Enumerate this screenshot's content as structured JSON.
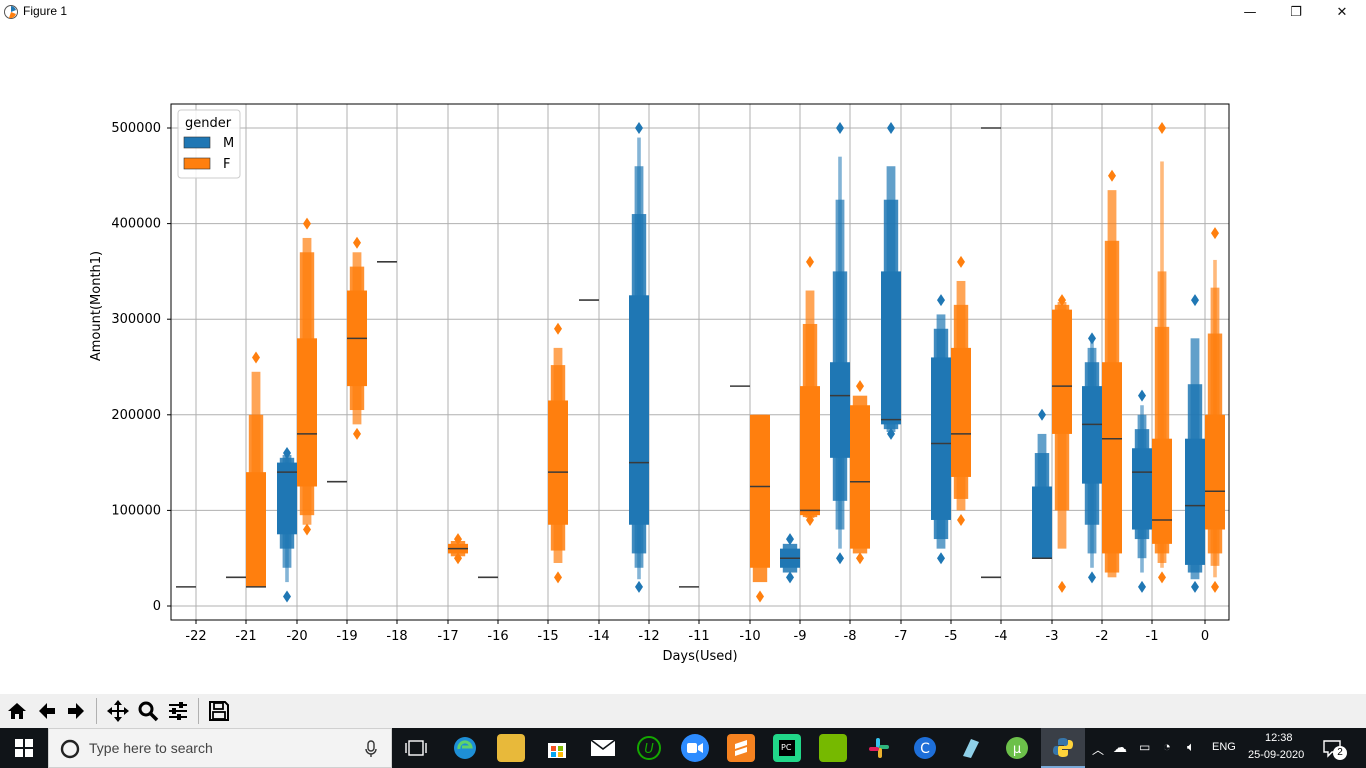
{
  "window": {
    "title": "Figure 1",
    "minimize": "—",
    "restore": "❐",
    "close": "✕"
  },
  "chart_data": {
    "type": "boxen",
    "xlabel": "Days(Used)",
    "ylabel": "Amount(Month1)",
    "ylim": [
      -14000,
      524000
    ],
    "yticks": [
      0,
      100000,
      200000,
      300000,
      400000,
      500000
    ],
    "ytick_labels": [
      "0",
      "100000",
      "200000",
      "300000",
      "400000",
      "500000"
    ],
    "categories": [
      "-22",
      "-21",
      "-20",
      "-19",
      "-18",
      "-17",
      "-16",
      "-15",
      "-14",
      "-12",
      "-11",
      "-10",
      "-9",
      "-8",
      "-7",
      "-5",
      "-4",
      "-3",
      "-2",
      "-1",
      "0"
    ],
    "grid": true,
    "legend": {
      "title": "gender",
      "placement": "top-left",
      "entries": [
        "M",
        "F"
      ]
    },
    "colors": {
      "M": "#1f77b4",
      "F": "#ff7f0e"
    },
    "series": [
      {
        "name": "M",
        "boxes": [
          {
            "cat": "-22",
            "median": 20000,
            "levels": [],
            "outliers": []
          },
          {
            "cat": "-21",
            "median": 30000,
            "levels": [],
            "outliers": []
          },
          {
            "cat": "-20",
            "median": 140000,
            "levels": [
              [
                75000,
                150000
              ],
              [
                60000,
                155000
              ],
              [
                40000,
                158000
              ],
              [
                25000,
                160000
              ]
            ],
            "outliers": [
              10000,
              160000
            ]
          },
          {
            "cat": "-19",
            "median": 130000,
            "levels": [],
            "outliers": []
          },
          {
            "cat": "-18",
            "median": 360000,
            "levels": [],
            "outliers": []
          },
          {
            "cat": "-16",
            "median": 30000,
            "levels": [],
            "outliers": []
          },
          {
            "cat": "-14",
            "median": 320000,
            "levels": [],
            "outliers": []
          },
          {
            "cat": "-12",
            "median": 150000,
            "levels": [
              [
                85000,
                325000
              ],
              [
                55000,
                410000
              ],
              [
                40000,
                460000
              ],
              [
                28000,
                490000
              ]
            ],
            "outliers": [
              20000,
              500000
            ]
          },
          {
            "cat": "-11",
            "median": 20000,
            "levels": [],
            "outliers": []
          },
          {
            "cat": "-10",
            "median": 230000,
            "levels": [],
            "outliers": []
          },
          {
            "cat": "-9",
            "median": 50000,
            "levels": [
              [
                40000,
                60000
              ],
              [
                35000,
                65000
              ]
            ],
            "outliers": [
              30000,
              70000
            ]
          },
          {
            "cat": "-8",
            "median": 220000,
            "levels": [
              [
                155000,
                255000
              ],
              [
                110000,
                350000
              ],
              [
                80000,
                425000
              ],
              [
                60000,
                470000
              ]
            ],
            "outliers": [
              50000,
              500000
            ]
          },
          {
            "cat": "-7",
            "median": 195000,
            "levels": [
              [
                190000,
                350000
              ],
              [
                185000,
                425000
              ],
              [
                182000,
                460000
              ]
            ],
            "outliers": [
              180000,
              500000
            ]
          },
          {
            "cat": "-5",
            "median": 170000,
            "levels": [
              [
                90000,
                260000
              ],
              [
                70000,
                290000
              ],
              [
                60000,
                305000
              ]
            ],
            "outliers": [
              50000,
              320000
            ]
          },
          {
            "cat": "-4",
            "median": 500000,
            "levels": [],
            "outliers": []
          },
          {
            "cat": "-4b",
            "median": 30000,
            "levels": [],
            "outliers": []
          },
          {
            "cat": "-3",
            "median": 50000,
            "levels": [
              [
                50000,
                125000
              ],
              [
                50000,
                160000
              ],
              [
                50000,
                180000
              ]
            ],
            "outliers": [
              200000
            ]
          },
          {
            "cat": "-2",
            "median": 190000,
            "levels": [
              [
                128000,
                230000
              ],
              [
                85000,
                255000
              ],
              [
                55000,
                270000
              ],
              [
                40000,
                280000
              ]
            ],
            "outliers": [
              30000,
              280000
            ]
          },
          {
            "cat": "-1",
            "median": 140000,
            "levels": [
              [
                80000,
                165000
              ],
              [
                70000,
                185000
              ],
              [
                50000,
                200000
              ],
              [
                35000,
                210000
              ]
            ],
            "outliers": [
              20000,
              220000
            ]
          },
          {
            "cat": "0",
            "median": 105000,
            "levels": [
              [
                43000,
                175000
              ],
              [
                35000,
                232000
              ],
              [
                28000,
                280000
              ]
            ],
            "outliers": [
              20000,
              320000
            ]
          }
        ]
      },
      {
        "name": "F",
        "boxes": [
          {
            "cat": "-21",
            "median": 20000,
            "levels": [
              [
                20000,
                140000
              ],
              [
                20000,
                200000
              ],
              [
                20000,
                245000
              ]
            ],
            "outliers": [
              260000
            ]
          },
          {
            "cat": "-20",
            "median": 180000,
            "levels": [
              [
                125000,
                280000
              ],
              [
                95000,
                370000
              ],
              [
                85000,
                385000
              ]
            ],
            "outliers": [
              80000,
              400000
            ]
          },
          {
            "cat": "-19",
            "median": 280000,
            "levels": [
              [
                230000,
                330000
              ],
              [
                205000,
                355000
              ],
              [
                190000,
                370000
              ]
            ],
            "outliers": [
              180000,
              380000
            ]
          },
          {
            "cat": "-17",
            "median": 60000,
            "levels": [
              [
                55000,
                65000
              ],
              [
                52000,
                68000
              ]
            ],
            "outliers": [
              50000,
              70000
            ]
          },
          {
            "cat": "-15",
            "median": 140000,
            "levels": [
              [
                85000,
                215000
              ],
              [
                58000,
                252000
              ],
              [
                45000,
                270000
              ]
            ],
            "outliers": [
              30000,
              290000
            ]
          },
          {
            "cat": "-10",
            "median": 125000,
            "levels": [
              [
                40000,
                200000
              ],
              [
                25000,
                200000
              ]
            ],
            "outliers": [
              10000
            ]
          },
          {
            "cat": "-9",
            "median": 100000,
            "levels": [
              [
                95000,
                230000
              ],
              [
                93000,
                295000
              ],
              [
                92000,
                330000
              ]
            ],
            "outliers": [
              90000,
              360000
            ]
          },
          {
            "cat": "-8",
            "median": 130000,
            "levels": [
              [
                60000,
                210000
              ],
              [
                55000,
                220000
              ]
            ],
            "outliers": [
              50000,
              230000
            ]
          },
          {
            "cat": "-5",
            "median": 180000,
            "levels": [
              [
                135000,
                270000
              ],
              [
                112000,
                315000
              ],
              [
                100000,
                340000
              ]
            ],
            "outliers": [
              90000,
              360000
            ]
          },
          {
            "cat": "-3",
            "median": 230000,
            "levels": [
              [
                180000,
                310000
              ],
              [
                100000,
                315000
              ],
              [
                60000,
                318000
              ]
            ],
            "outliers": [
              20000,
              320000
            ]
          },
          {
            "cat": "-2",
            "median": 175000,
            "levels": [
              [
                55000,
                255000
              ],
              [
                35000,
                382000
              ],
              [
                30000,
                435000
              ]
            ],
            "outliers": [
              450000
            ]
          },
          {
            "cat": "-1",
            "median": 90000,
            "levels": [
              [
                65000,
                175000
              ],
              [
                55000,
                292000
              ],
              [
                45000,
                350000
              ],
              [
                40000,
                465000
              ]
            ],
            "outliers": [
              30000,
              500000
            ]
          },
          {
            "cat": "0",
            "median": 120000,
            "levels": [
              [
                80000,
                200000
              ],
              [
                55000,
                285000
              ],
              [
                42000,
                333000
              ],
              [
                30000,
                362000
              ]
            ],
            "outliers": [
              20000,
              390000
            ]
          }
        ]
      }
    ]
  },
  "toolbar": {
    "buttons": [
      "home-icon",
      "back-icon",
      "forward-icon",
      "pan-icon",
      "zoom-icon",
      "configure-subplots-icon",
      "save-icon"
    ]
  },
  "taskbar": {
    "search_placeholder": "Type here to search",
    "language": "ENG",
    "time": "12:38",
    "date": "25-09-2020",
    "notification_count": "2"
  }
}
